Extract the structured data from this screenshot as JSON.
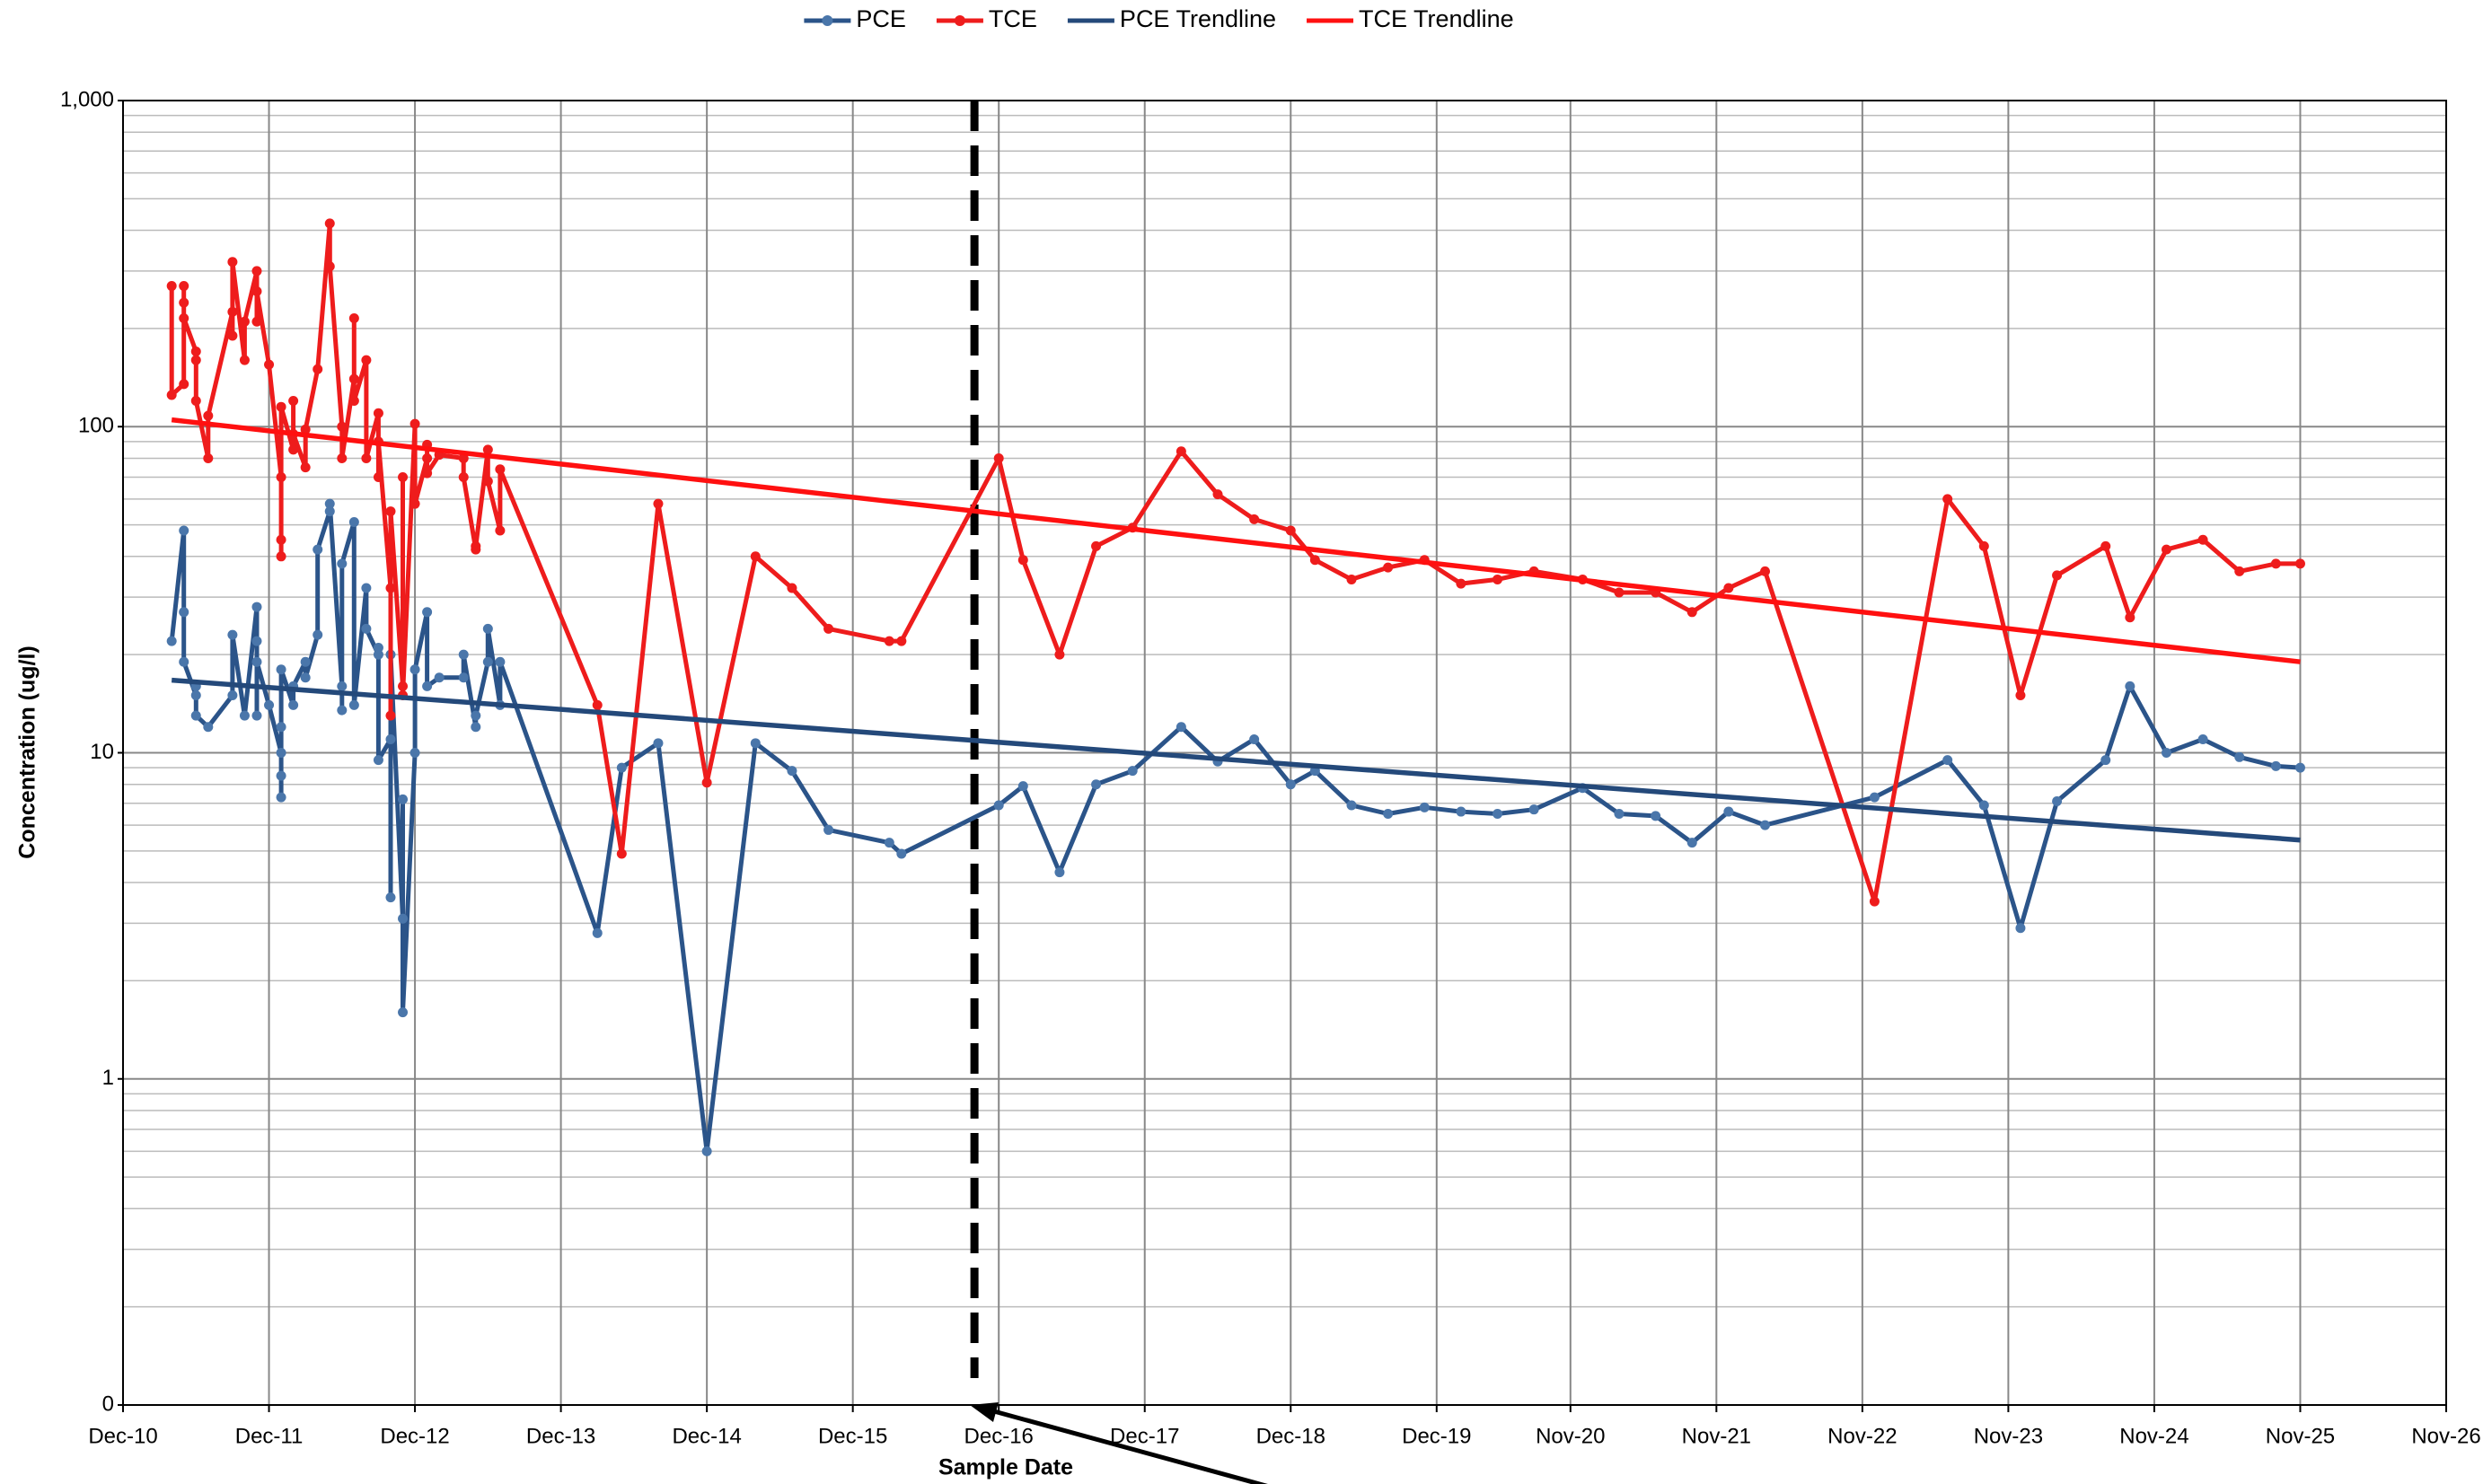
{
  "chart_data": {
    "type": "line",
    "y_label": "Concentration (ug/l)",
    "x_label": "Sample Date",
    "log_scale": true,
    "grid": true,
    "minor_grid": true,
    "legend": "top",
    "xlim": [
      "2010-12",
      "2026-11"
    ],
    "xticks": [
      {
        "value": "2010-12",
        "label": "Dec-10"
      },
      {
        "value": "2011-12",
        "label": "Dec-11"
      },
      {
        "value": "2012-12",
        "label": "Dec-12"
      },
      {
        "value": "2013-12",
        "label": "Dec-13"
      },
      {
        "value": "2014-12",
        "label": "Dec-14"
      },
      {
        "value": "2015-12",
        "label": "Dec-15"
      },
      {
        "value": "2016-12",
        "label": "Dec-16"
      },
      {
        "value": "2017-12",
        "label": "Dec-17"
      },
      {
        "value": "2018-12",
        "label": "Dec-18"
      },
      {
        "value": "2019-12",
        "label": "Dec-19"
      },
      {
        "value": "2020-11",
        "label": "Nov-20"
      },
      {
        "value": "2021-11",
        "label": "Nov-21"
      },
      {
        "value": "2022-11",
        "label": "Nov-22"
      },
      {
        "value": "2023-11",
        "label": "Nov-23"
      },
      {
        "value": "2024-11",
        "label": "Nov-24"
      },
      {
        "value": "2025-11",
        "label": "Nov-25"
      },
      {
        "value": "2026-11",
        "label": "Nov-26"
      }
    ],
    "ylim": [
      0.1,
      1000
    ],
    "yticks": [
      {
        "value": 0.1,
        "label": "0"
      },
      1,
      10,
      100,
      {
        "value": 1000,
        "label": "1,000"
      }
    ],
    "reference_line": {
      "x": "2016-10"
    },
    "series": [
      {
        "name": "PCE",
        "color": "#2b5489",
        "marker_color": "#4a76aa",
        "markers": true,
        "x": [
          "2011-04",
          "2011-05",
          "2011-05",
          "2011-05",
          "2011-06",
          "2011-06",
          "2011-06",
          "2011-07",
          "2011-09",
          "2011-09",
          "2011-10",
          "2011-11",
          "2011-11",
          "2011-11",
          "2011-11",
          "2011-12",
          "2012-01",
          "2012-01",
          "2012-01",
          "2012-01",
          "2012-01",
          "2012-02",
          "2012-02",
          "2012-03",
          "2012-03",
          "2012-04",
          "2012-04",
          "2012-05",
          "2012-05",
          "2012-06",
          "2012-06",
          "2012-06",
          "2012-07",
          "2012-07",
          "2012-08",
          "2012-08",
          "2012-09",
          "2012-09",
          "2012-09",
          "2012-10",
          "2012-10",
          "2012-10",
          "2012-11",
          "2012-11",
          "2012-11",
          "2012-12",
          "2012-12",
          "2013-01",
          "2013-01",
          "2013-02",
          "2013-04",
          "2013-04",
          "2013-05",
          "2013-05",
          "2013-06",
          "2013-06",
          "2013-07",
          "2013-07",
          "2014-03",
          "2014-05",
          "2014-08",
          "2014-12",
          "2015-04",
          "2015-07",
          "2015-10",
          "2016-03",
          "2016-04",
          "2016-12",
          "2017-02",
          "2017-05",
          "2017-08",
          "2017-11",
          "2018-03",
          "2018-06",
          "2018-09",
          "2018-12",
          "2019-02",
          "2019-05",
          "2019-08",
          "2019-11",
          "2020-02",
          "2020-05",
          "2020-08",
          "2020-12",
          "2021-03",
          "2021-06",
          "2021-09",
          "2021-12",
          "2022-03",
          "2022-12",
          "2023-06",
          "2023-09",
          "2023-12",
          "2024-03",
          "2024-07",
          "2024-09",
          "2024-12",
          "2025-03",
          "2025-06",
          "2025-09",
          "2025-11"
        ],
        "values": [
          22,
          48,
          27,
          19,
          15,
          16,
          13,
          12,
          15,
          23,
          13,
          28,
          13,
          22,
          19,
          14,
          10,
          8.5,
          7.3,
          12,
          18,
          14,
          16,
          19,
          17,
          23,
          42,
          55,
          58,
          16,
          13.5,
          38,
          51,
          14,
          32,
          24,
          20,
          21,
          9.5,
          11,
          3.6,
          20,
          3.1,
          7.2,
          1.6,
          10,
          18,
          27,
          16,
          17,
          17,
          20,
          12,
          13,
          19,
          24,
          14,
          19,
          2.8,
          9.0,
          10.7,
          0.6,
          10.7,
          8.8,
          5.8,
          5.3,
          4.9,
          6.9,
          7.9,
          4.3,
          8.0,
          8.8,
          12,
          9.4,
          11,
          8.0,
          8.8,
          6.9,
          6.5,
          6.8,
          6.6,
          6.5,
          6.7,
          7.8,
          6.5,
          6.4,
          5.3,
          6.6,
          6.0,
          7.3,
          9.5,
          6.9,
          2.9,
          7.1,
          9.5,
          16,
          10,
          11,
          9.7,
          9.1,
          9.0
        ]
      },
      {
        "name": "TCE",
        "color": "#ee1c1c",
        "marker_color": "#ee1c1c",
        "markers": true,
        "x": [
          "2011-04",
          "2011-04",
          "2011-05",
          "2011-05",
          "2011-05",
          "2011-05",
          "2011-06",
          "2011-06",
          "2011-06",
          "2011-07",
          "2011-07",
          "2011-09",
          "2011-09",
          "2011-09",
          "2011-10",
          "2011-10",
          "2011-11",
          "2011-11",
          "2011-11",
          "2011-12",
          "2012-01",
          "2012-01",
          "2012-01",
          "2012-01",
          "2012-02",
          "2012-02",
          "2012-02",
          "2012-03",
          "2012-03",
          "2012-04",
          "2012-05",
          "2012-05",
          "2012-06",
          "2012-06",
          "2012-07",
          "2012-07",
          "2012-07",
          "2012-08",
          "2012-08",
          "2012-09",
          "2012-09",
          "2012-09",
          "2012-10",
          "2012-10",
          "2012-10",
          "2012-11",
          "2012-11",
          "2012-11",
          "2012-12",
          "2012-12",
          "2013-01",
          "2013-01",
          "2013-01",
          "2013-02",
          "2013-04",
          "2013-04",
          "2013-05",
          "2013-05",
          "2013-06",
          "2013-06",
          "2013-07",
          "2013-07",
          "2014-03",
          "2014-05",
          "2014-08",
          "2014-12",
          "2015-04",
          "2015-07",
          "2015-10",
          "2016-03",
          "2016-04",
          "2016-12",
          "2017-02",
          "2017-05",
          "2017-08",
          "2017-11",
          "2018-03",
          "2018-06",
          "2018-09",
          "2018-12",
          "2019-02",
          "2019-05",
          "2019-08",
          "2019-11",
          "2020-02",
          "2020-05",
          "2020-08",
          "2020-12",
          "2021-03",
          "2021-06",
          "2021-09",
          "2021-12",
          "2022-03",
          "2022-12",
          "2023-06",
          "2023-09",
          "2023-12",
          "2024-03",
          "2024-07",
          "2024-09",
          "2024-12",
          "2025-03",
          "2025-06",
          "2025-09",
          "2025-11"
        ],
        "values": [
          270,
          125,
          135,
          270,
          240,
          215,
          170,
          160,
          120,
          80,
          108,
          225,
          190,
          320,
          160,
          210,
          300,
          210,
          260,
          155,
          70,
          45,
          40,
          115,
          85,
          120,
          95,
          75,
          98,
          150,
          420,
          310,
          100,
          80,
          140,
          215,
          120,
          160,
          80,
          110,
          70,
          90,
          32,
          13,
          55,
          16,
          70,
          15,
          102,
          58,
          80,
          88,
          72,
          82,
          80,
          70,
          42,
          43,
          85,
          68,
          48,
          74,
          14,
          4.9,
          58,
          8.1,
          40,
          32,
          24,
          22,
          22,
          80,
          39,
          20,
          43,
          49,
          84,
          62,
          52,
          48,
          39,
          34,
          37,
          39,
          33,
          34,
          36,
          34,
          31,
          31,
          27,
          32,
          36,
          3.5,
          60,
          43,
          15,
          35,
          43,
          26,
          42,
          45,
          36,
          38,
          38
        ]
      },
      {
        "name": "PCE Trendline",
        "color": "#24497a",
        "markers": false,
        "x": [
          "2011-04",
          "2025-11"
        ],
        "values": [
          16.7,
          5.4
        ]
      },
      {
        "name": "TCE Trendline",
        "color": "#ff1010",
        "markers": false,
        "x": [
          "2011-04",
          "2025-11"
        ],
        "values": [
          105,
          19
        ]
      }
    ]
  }
}
